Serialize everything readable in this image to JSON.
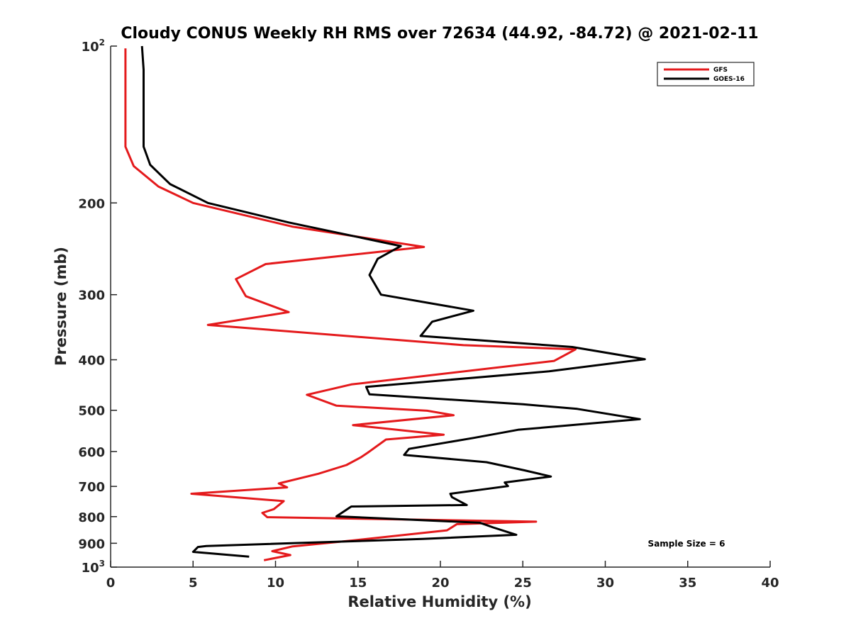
{
  "chart_data": {
    "type": "line",
    "title": "Cloudy CONUS Weekly RH RMS over 72634 (44.92, -84.72) @ 2021-02-11",
    "xlabel": "Relative Humidity (%)",
    "ylabel": "Pressure (mb)",
    "xlim": [
      0,
      40
    ],
    "ylim": [
      100,
      1000
    ],
    "y_scale": "log",
    "y_reversed": true,
    "grid": false,
    "legend_placement": "top-right",
    "x_ticks": [
      "0",
      "5",
      "10",
      "15",
      "20",
      "25",
      "30",
      "35",
      "40"
    ],
    "x_tick_values": [
      0,
      5,
      10,
      15,
      20,
      25,
      30,
      35,
      40
    ],
    "y_ticks": [
      {
        "value": 100,
        "base": "10",
        "exp": "2"
      },
      {
        "value": 200,
        "label": "200"
      },
      {
        "value": 300,
        "label": "300"
      },
      {
        "value": 400,
        "label": "400"
      },
      {
        "value": 500,
        "label": "500"
      },
      {
        "value": 600,
        "label": "600"
      },
      {
        "value": 700,
        "label": "700"
      },
      {
        "value": 800,
        "label": "800"
      },
      {
        "value": 900,
        "label": "900"
      },
      {
        "value": 1000,
        "base": "10",
        "exp": "3"
      }
    ],
    "annotation": "Sample Size = 6",
    "series": [
      {
        "name": "GFS",
        "color": "#e41a1c",
        "x": [
          0.9,
          0.9,
          1.4,
          2.9,
          5.0,
          11.0,
          19.0,
          9.4,
          7.6,
          8.2,
          10.8,
          5.9,
          21.4,
          28.2,
          26.9,
          14.6,
          11.9,
          13.7,
          19.2,
          20.8,
          14.7,
          20.2,
          16.7,
          15.6,
          15.2,
          14.3,
          12.6,
          10.2,
          10.7,
          4.9,
          10.5,
          9.9,
          9.2,
          9.5,
          25.8,
          21.0,
          20.4,
          14.8,
          11.0,
          9.8,
          10.9,
          9.3
        ],
        "y": [
          101,
          156,
          170,
          186,
          200,
          222,
          243,
          262,
          280,
          302,
          324,
          343,
          375,
          382,
          402,
          446,
          467,
          490,
          501,
          511,
          534,
          557,
          569,
          603,
          615,
          637,
          662,
          691,
          703,
          723,
          747,
          774,
          787,
          802,
          818,
          827,
          850,
          888,
          913,
          932,
          948,
          970
        ]
      },
      {
        "name": "GOES-16",
        "color": "#000000",
        "x": [
          1.9,
          2.0,
          2.0,
          2.0,
          2.4,
          3.6,
          5.9,
          10.8,
          17.6,
          16.2,
          15.7,
          16.4,
          22.0,
          19.5,
          18.8,
          28.0,
          32.4,
          26.6,
          15.5,
          15.7,
          25.0,
          28.3,
          32.1,
          24.7,
          22.0,
          18.1,
          17.8,
          22.8,
          25.1,
          26.7,
          23.9,
          24.1,
          20.6,
          20.7,
          21.6,
          14.6,
          13.7,
          22.4,
          23.2,
          24.6,
          18.9,
          5.8,
          5.3,
          5.0,
          8.4
        ],
        "y": [
          100,
          111,
          126,
          156,
          169,
          184,
          200,
          218,
          242,
          256,
          275,
          300,
          322,
          338,
          360,
          378,
          399,
          421,
          451,
          466,
          487,
          497,
          520,
          545,
          565,
          593,
          609,
          629,
          652,
          670,
          688,
          699,
          723,
          734,
          760,
          765,
          799,
          822,
          839,
          867,
          883,
          911,
          915,
          935,
          955
        ]
      }
    ]
  }
}
